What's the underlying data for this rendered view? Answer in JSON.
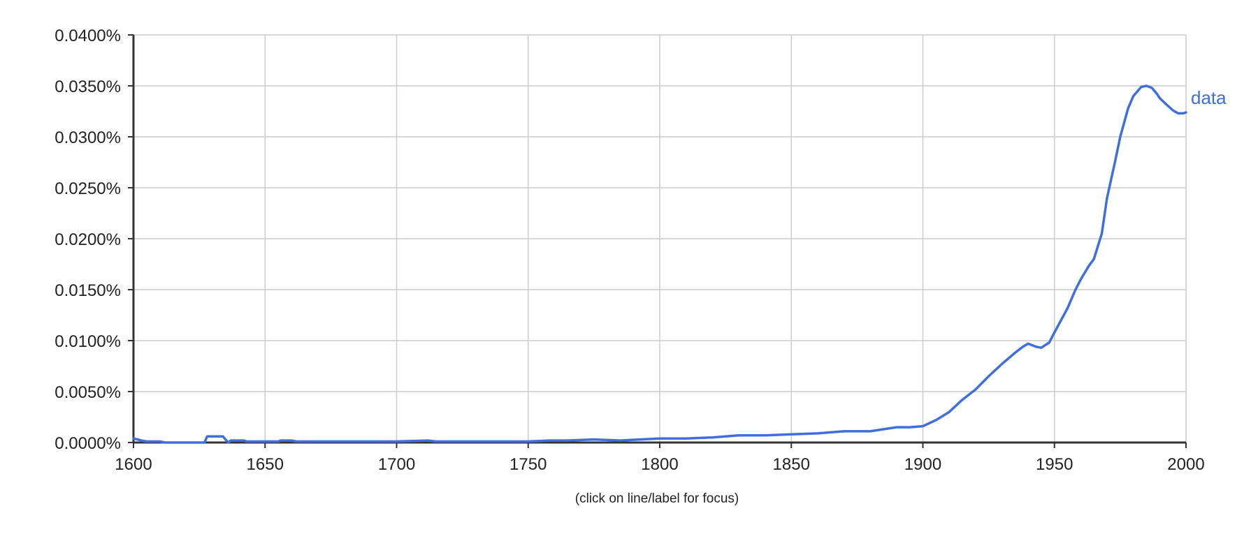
{
  "chart_data": {
    "type": "line",
    "title": "",
    "xlabel": "",
    "ylabel": "",
    "xlim": [
      1600,
      2000
    ],
    "ylim": [
      0,
      0.04
    ],
    "x_ticks": [
      "1600",
      "1650",
      "1700",
      "1750",
      "1800",
      "1850",
      "1900",
      "1950",
      "2000"
    ],
    "y_ticks": [
      "0.0000%",
      "0.0050%",
      "0.0100%",
      "0.0150%",
      "0.0200%",
      "0.0250%",
      "0.0300%",
      "0.0350%",
      "0.0400%"
    ],
    "grid": true,
    "colors": {
      "line": "#3f6fdc",
      "grid": "#cccccc",
      "axis": "#333333"
    },
    "series": [
      {
        "name": "data",
        "x": [
          1600,
          1603,
          1605,
          1610,
          1612,
          1620,
          1627,
          1628,
          1634,
          1636,
          1637,
          1642,
          1643,
          1650,
          1655,
          1656,
          1660,
          1662,
          1670,
          1680,
          1690,
          1700,
          1712,
          1715,
          1720,
          1730,
          1740,
          1750,
          1758,
          1765,
          1775,
          1785,
          1800,
          1810,
          1820,
          1830,
          1840,
          1850,
          1860,
          1870,
          1875,
          1880,
          1885,
          1890,
          1895,
          1900,
          1905,
          1910,
          1915,
          1920,
          1925,
          1930,
          1935,
          1938,
          1940,
          1943,
          1945,
          1948,
          1950,
          1955,
          1958,
          1960,
          1963,
          1965,
          1968,
          1970,
          1973,
          1975,
          1978,
          1980,
          1983,
          1985,
          1987,
          1989,
          1990,
          1992,
          1995,
          1997,
          1999,
          2000
        ],
        "y": [
          0.0004,
          0.0002,
          0.0001,
          0.0001,
          0,
          0,
          0,
          0.0006,
          0.0006,
          0,
          0.0002,
          0.0002,
          0.0001,
          0.0001,
          0.0001,
          0.0002,
          0.0002,
          0.0001,
          0.0001,
          0.0001,
          0.0001,
          0.0001,
          0.0002,
          0.0001,
          0.0001,
          0.0001,
          0.0001,
          0.0001,
          0.0002,
          0.0002,
          0.0003,
          0.0002,
          0.0004,
          0.0004,
          0.0005,
          0.0007,
          0.0007,
          0.0008,
          0.0009,
          0.0011,
          0.0011,
          0.0011,
          0.0013,
          0.0015,
          0.0015,
          0.0016,
          0.0022,
          0.003,
          0.0042,
          0.0052,
          0.0065,
          0.0077,
          0.0088,
          0.0094,
          0.0097,
          0.0094,
          0.0093,
          0.0098,
          0.0108,
          0.0132,
          0.015,
          0.016,
          0.0173,
          0.018,
          0.0205,
          0.024,
          0.0275,
          0.03,
          0.0328,
          0.034,
          0.0349,
          0.035,
          0.0348,
          0.0342,
          0.0338,
          0.0333,
          0.0326,
          0.0323,
          0.0323,
          0.0324
        ]
      }
    ]
  },
  "hint_text": "(click on line/label for focus)"
}
